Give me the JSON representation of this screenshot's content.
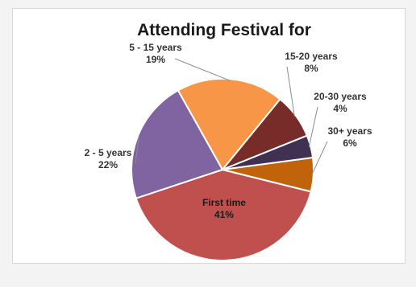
{
  "chart_data": {
    "type": "pie",
    "title": "Attending Festival for",
    "slices": [
      {
        "label": "First time",
        "value": 41,
        "display": "41%",
        "color": "#c0504d"
      },
      {
        "label": "2 - 5 years",
        "value": 22,
        "display": "22%",
        "color": "#8064a2"
      },
      {
        "label": "5 - 15 years",
        "value": 19,
        "display": "19%",
        "color": "#f79646"
      },
      {
        "label": "15-20 years",
        "value": 8,
        "display": "8%",
        "color": "#772c2a"
      },
      {
        "label": "20-30 years",
        "value": 4,
        "display": "4%",
        "color": "#403152"
      },
      {
        "label": "30+ years",
        "value": 6,
        "display": "6%",
        "color": "#c0630a"
      }
    ]
  }
}
